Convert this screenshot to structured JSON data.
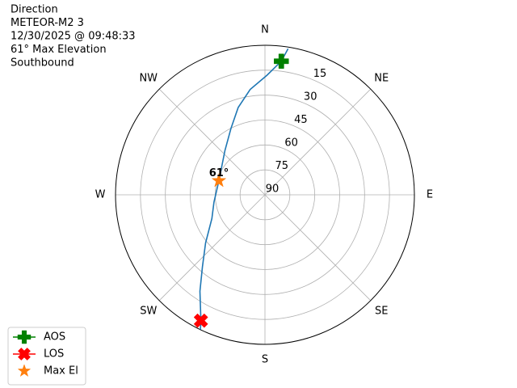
{
  "chart_data": {
    "type": "polar",
    "title_lines": [
      "Direction",
      "METEOR-M2 3",
      "12/30/2025 @ 09:48:33",
      "61° Max Elevation",
      "Southbound"
    ],
    "theta_zero": "N",
    "theta_direction": "clockwise",
    "thetaticks": [
      {
        "value": 0,
        "label": "N"
      },
      {
        "value": 45,
        "label": "NE"
      },
      {
        "value": 90,
        "label": "E"
      },
      {
        "value": 135,
        "label": "SE"
      },
      {
        "value": 180,
        "label": "S"
      },
      {
        "value": 225,
        "label": "SW"
      },
      {
        "value": 270,
        "label": "W"
      },
      {
        "value": 315,
        "label": "NW"
      }
    ],
    "rlim": [
      90,
      0
    ],
    "rticks": [
      15,
      30,
      45,
      60,
      75,
      90
    ],
    "grid": true,
    "legend": "lower left",
    "track": {
      "color": "#1f77b4",
      "x": [
        9,
        7,
        1,
        352,
        343,
        333,
        318,
        297,
        287,
        262,
        246,
        231,
        221,
        214,
        207,
        205.6
      ],
      "values": [
        1,
        9,
        18,
        26,
        35,
        45,
        54,
        60,
        61,
        59,
        55,
        44,
        32.6,
        20,
        5,
        0
      ]
    },
    "series": [
      {
        "name": "AOS",
        "color": "#008000",
        "marker": "plus",
        "line": true,
        "x": [
          7
        ],
        "values": [
          9
        ]
      },
      {
        "name": "LOS",
        "color": "#ff0000",
        "marker": "x",
        "line": true,
        "x": [
          207
        ],
        "values": [
          5
        ]
      },
      {
        "name": "Max El",
        "color": "#ff7f0e",
        "marker": "star",
        "line": false,
        "x": [
          287
        ],
        "values": [
          61
        ],
        "value_labels": [
          "61°"
        ]
      }
    ]
  }
}
